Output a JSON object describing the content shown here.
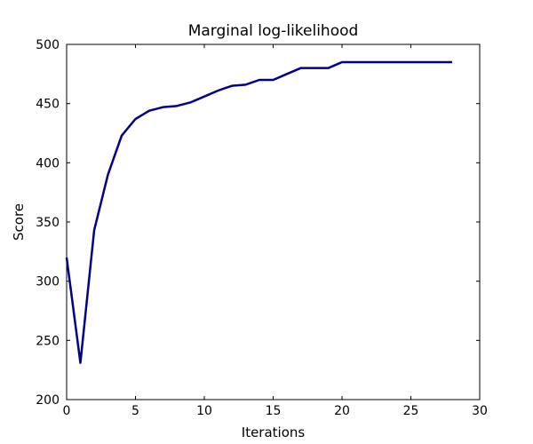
{
  "figure": {
    "background_color": "#ffffff",
    "axis_color": "#000000"
  },
  "chart_data": {
    "type": "line",
    "title": "Marginal log-likelihood",
    "xlabel": "Iterations",
    "ylabel": "Score",
    "xlim": [
      0,
      30
    ],
    "ylim": [
      200,
      500
    ],
    "xticks": [
      0,
      5,
      10,
      15,
      20,
      25,
      30
    ],
    "yticks": [
      200,
      250,
      300,
      350,
      400,
      450,
      500
    ],
    "grid": false,
    "legend_position": "none",
    "line_color": "#00008B",
    "series": [
      {
        "name": "marginal-log-likelihood",
        "x": [
          0,
          1,
          2,
          3,
          4,
          5,
          6,
          7,
          8,
          9,
          10,
          11,
          12,
          13,
          14,
          15,
          16,
          17,
          18,
          19,
          20,
          21,
          22,
          23,
          24,
          25,
          26,
          27,
          28
        ],
        "y": [
          320,
          231,
          343,
          390,
          423,
          437,
          444,
          447,
          448,
          451,
          456,
          461,
          465,
          466,
          470,
          470,
          475,
          480,
          480,
          480,
          485,
          485,
          485,
          485,
          485,
          485,
          485,
          485,
          485
        ]
      }
    ]
  }
}
